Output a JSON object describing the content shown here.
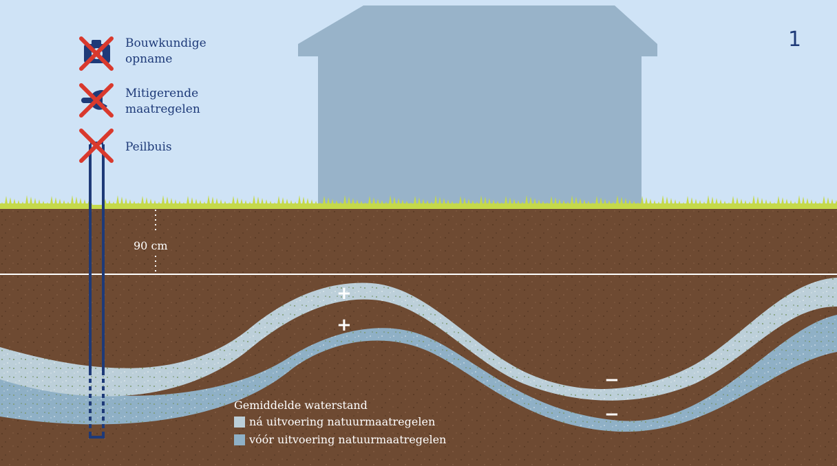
{
  "step_number": "1",
  "measures": [
    {
      "label": "Bouwkundige\nopname",
      "icon": "camera-icon"
    },
    {
      "label": "Mitigerende\nmaatregelen",
      "icon": "wrench-icon"
    },
    {
      "label": "Peilbuis",
      "icon": "monitoring-well-icon"
    }
  ],
  "depth_label": "90 cm",
  "legend": {
    "title": "Gemiddelde waterstand",
    "items": [
      {
        "label": "ná uitvoering natuurmaatregelen",
        "color": "#bccfd9"
      },
      {
        "label": "vóór uitvoering natuurmaatregelen",
        "color": "#8fb0c6"
      }
    ]
  },
  "signs": {
    "upper_plus": "+",
    "lower_plus": "+",
    "upper_minus": "−",
    "lower_minus": "−"
  },
  "colors": {
    "sky": "#cfe3f6",
    "house": "#98b3c9",
    "grass": "#c5d94a",
    "soil": "#6e4a32",
    "after_band": "#bccfd9",
    "before_band": "#8fb0c6",
    "text_blue": "#1e3a78",
    "cross_red": "#d9392d"
  }
}
